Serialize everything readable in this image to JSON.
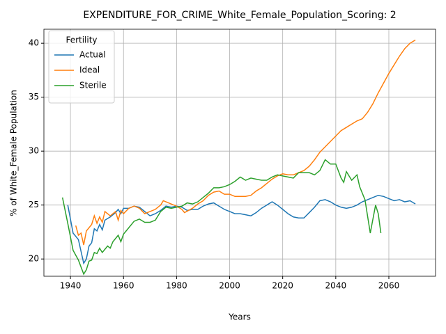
{
  "chart_data": {
    "type": "line",
    "title": "EXPENDITURE_FOR_CRIME_White_Female_Population_Scoring: 2",
    "x_label": "Years",
    "y_label": "% of White_Female Population",
    "legend_title": "Fertility",
    "legend_position": "upper left",
    "grid": true,
    "xlim": [
      1930,
      2077.6
    ],
    "ylim": [
      18.4,
      41.3
    ],
    "xticks": [
      1940,
      1960,
      1980,
      2000,
      2020,
      2040,
      2060
    ],
    "yticks": [
      20,
      25,
      30,
      35,
      40
    ],
    "series": [
      {
        "name": "Actual",
        "color": "#1f77b4",
        "x": [
          1939,
          1941,
          1943,
          1945,
          1946,
          1947,
          1948,
          1949,
          1950,
          1951,
          1952,
          1953,
          1955,
          1957,
          1958,
          1959,
          1960,
          1962,
          1964,
          1966,
          1968,
          1970,
          1972,
          1974,
          1976,
          1978,
          1980,
          1982,
          1984,
          1986,
          1988,
          1990,
          1992,
          1994,
          1996,
          1998,
          2000,
          2002,
          2004,
          2006,
          2008,
          2010,
          2012,
          2014,
          2016,
          2018,
          2020,
          2022,
          2024,
          2026,
          2028,
          2030,
          2032,
          2034,
          2036,
          2038,
          2040,
          2042,
          2044,
          2046,
          2048,
          2050,
          2052,
          2054,
          2056,
          2058,
          2060,
          2062,
          2064,
          2066,
          2068,
          2070
        ],
        "values": [
          25.0,
          22.4,
          21.8,
          19.6,
          20.0,
          21.2,
          21.5,
          22.8,
          22.6,
          23.2,
          22.7,
          23.6,
          23.9,
          24.3,
          24.6,
          24.2,
          24.7,
          24.7,
          24.9,
          24.8,
          24.4,
          24.0,
          24.2,
          24.5,
          24.9,
          24.8,
          24.9,
          24.8,
          24.5,
          24.6,
          24.6,
          24.9,
          25.1,
          25.2,
          24.9,
          24.6,
          24.4,
          24.2,
          24.2,
          24.1,
          24.0,
          24.3,
          24.7,
          25.0,
          25.3,
          25.0,
          24.6,
          24.2,
          23.9,
          23.8,
          23.8,
          24.3,
          24.8,
          25.4,
          25.5,
          25.3,
          25.0,
          24.8,
          24.7,
          24.8,
          25.0,
          25.3,
          25.5,
          25.7,
          25.9,
          25.8,
          25.6,
          25.4,
          25.5,
          25.3,
          25.4,
          25.1
        ]
      },
      {
        "name": "Ideal",
        "color": "#ff7f0e",
        "x": [
          1942,
          1943,
          1944,
          1945,
          1946,
          1948,
          1949,
          1950,
          1951,
          1952,
          1953,
          1955,
          1957,
          1958,
          1959,
          1960,
          1962,
          1964,
          1966,
          1968,
          1970,
          1972,
          1974,
          1975,
          1978,
          1980,
          1982,
          1983,
          1986,
          1988,
          1990,
          1992,
          1994,
          1996,
          1998,
          2000,
          2002,
          2004,
          2006,
          2008,
          2010,
          2012,
          2014,
          2016,
          2018,
          2020,
          2022,
          2024,
          2026,
          2028,
          2030,
          2032,
          2034,
          2036,
          2038,
          2040,
          2042,
          2044,
          2046,
          2048,
          2050,
          2052,
          2054,
          2056,
          2058,
          2060,
          2062,
          2064,
          2066,
          2068,
          2070
        ],
        "values": [
          23.1,
          22.2,
          22.4,
          21.3,
          22.6,
          23.2,
          24.0,
          23.3,
          23.9,
          23.4,
          24.4,
          24.0,
          24.4,
          23.6,
          24.5,
          24.2,
          24.7,
          24.9,
          24.7,
          24.2,
          24.4,
          24.6,
          25.0,
          25.4,
          25.1,
          24.9,
          24.6,
          24.3,
          24.7,
          25.1,
          25.4,
          25.9,
          26.2,
          26.3,
          26.0,
          26.0,
          25.8,
          25.8,
          25.8,
          25.9,
          26.3,
          26.6,
          27.0,
          27.4,
          27.7,
          27.9,
          27.8,
          27.8,
          28.0,
          28.2,
          28.6,
          29.2,
          29.9,
          30.4,
          30.9,
          31.4,
          31.9,
          32.2,
          32.5,
          32.8,
          33.0,
          33.6,
          34.4,
          35.4,
          36.3,
          37.2,
          38.0,
          38.8,
          39.5,
          40.0,
          40.3
        ]
      },
      {
        "name": "Sterile",
        "color": "#2ca02c",
        "x": [
          1937,
          1939,
          1941,
          1943,
          1945,
          1946,
          1947,
          1948,
          1949,
          1950,
          1951,
          1952,
          1954,
          1955,
          1956,
          1958,
          1959,
          1960,
          1962,
          1964,
          1966,
          1968,
          1970,
          1972,
          1974,
          1976,
          1978,
          1980,
          1982,
          1984,
          1986,
          1988,
          1990,
          1992,
          1994,
          1996,
          1998,
          2000,
          2002,
          2004,
          2006,
          2008,
          2010,
          2012,
          2014,
          2016,
          2018,
          2020,
          2022,
          2024,
          2026,
          2028,
          2030,
          2032,
          2034,
          2036,
          2038,
          2040,
          2042,
          2043,
          2044,
          2046,
          2048,
          2049,
          2051,
          2053,
          2055,
          2056,
          2057
        ],
        "values": [
          25.7,
          23.3,
          20.8,
          19.9,
          18.6,
          19.0,
          19.8,
          19.9,
          20.6,
          20.5,
          21.0,
          20.6,
          21.2,
          21.0,
          21.6,
          22.2,
          21.6,
          22.3,
          22.9,
          23.5,
          23.7,
          23.4,
          23.4,
          23.6,
          24.4,
          24.8,
          24.7,
          24.8,
          24.9,
          25.2,
          25.1,
          25.3,
          25.7,
          26.1,
          26.6,
          26.6,
          26.7,
          26.9,
          27.2,
          27.6,
          27.3,
          27.5,
          27.4,
          27.3,
          27.3,
          27.6,
          27.8,
          27.7,
          27.6,
          27.5,
          28.0,
          28.0,
          28.0,
          27.8,
          28.2,
          29.2,
          28.8,
          28.8,
          27.5,
          27.1,
          28.1,
          27.3,
          27.8,
          26.7,
          25.5,
          22.4,
          25.0,
          24.2,
          22.4
        ]
      }
    ]
  }
}
